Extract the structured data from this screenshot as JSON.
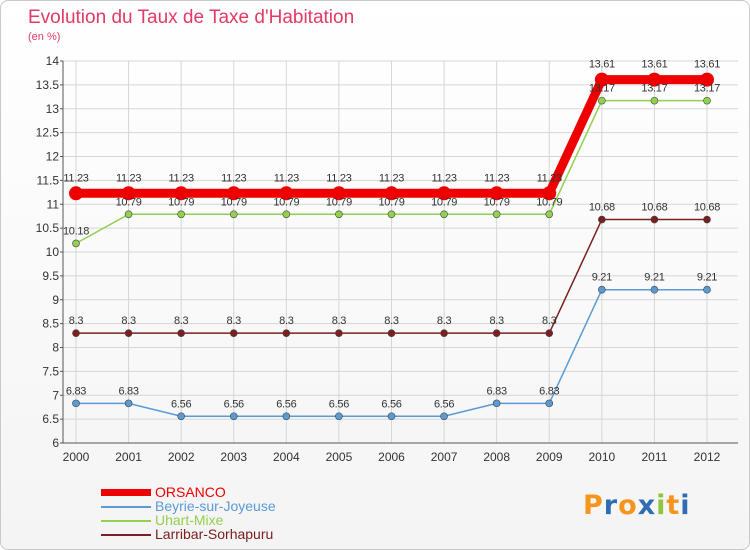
{
  "title": "Evolution du Taux de Taxe d'Habitation",
  "unit": "(en %)",
  "logo": "Proxiti",
  "colors": {
    "title": "#e23a63",
    "grid": "#d6d6d6",
    "axis": "#555555"
  },
  "chart_data": {
    "type": "line",
    "title": "Evolution du Taux de Taxe d'Habitation",
    "ylabel": "(en %)",
    "xlabel": "",
    "ylim": [
      6,
      14
    ],
    "yticks": [
      6,
      6.5,
      7,
      7.5,
      8,
      8.5,
      9,
      9.5,
      10,
      10.5,
      11,
      11.5,
      12,
      12.5,
      13,
      13.5,
      14
    ],
    "grid": true,
    "legend_position": "bottom-left",
    "x": [
      "2000",
      "2001",
      "2002",
      "2003",
      "2004",
      "2005",
      "2006",
      "2007",
      "2008",
      "2009",
      "2010",
      "2011",
      "2012"
    ],
    "series": [
      {
        "name": "ORSANCO",
        "color": "#ee0000",
        "bold": true,
        "values": [
          11.23,
          11.23,
          11.23,
          11.23,
          11.23,
          11.23,
          11.23,
          11.23,
          11.23,
          11.23,
          13.61,
          13.61,
          13.61
        ],
        "labels": [
          "11.23",
          "11.23",
          "11.23",
          "11.23",
          "11.23",
          "11.23",
          "11.23",
          "11.23",
          "11.23",
          "11.23",
          "13.61",
          "13.61",
          "13.61"
        ]
      },
      {
        "name": "Beyrie-sur-Joyeuse",
        "color": "#5b9bd5",
        "bold": false,
        "values": [
          6.83,
          6.83,
          6.56,
          6.56,
          6.56,
          6.56,
          6.56,
          6.56,
          6.83,
          6.83,
          9.21,
          9.21,
          9.21
        ],
        "labels": [
          "6.83",
          "6.83",
          "6.56",
          "6.56",
          "6.56",
          "6.56",
          "6.56",
          "6.56",
          "6.83",
          "6.83",
          "9.21",
          "9.21",
          "9.21"
        ]
      },
      {
        "name": "Uhart-Mixe",
        "color": "#92d050",
        "bold": false,
        "values": [
          10.18,
          10.79,
          10.79,
          10.79,
          10.79,
          10.79,
          10.79,
          10.79,
          10.79,
          10.79,
          13.17,
          13.17,
          13.17
        ],
        "labels": [
          "10.18",
          "10.79",
          "10.79",
          "10.79",
          "10.79",
          "10.79",
          "10.79",
          "10.79",
          "10.79",
          "10.79",
          "13.17",
          "13.17",
          "13.17"
        ]
      },
      {
        "name": "Larribar-Sorhapuru",
        "color": "#7b2020",
        "bold": false,
        "values": [
          8.3,
          8.3,
          8.3,
          8.3,
          8.3,
          8.3,
          8.3,
          8.3,
          8.3,
          8.3,
          10.68,
          10.68,
          10.68
        ],
        "labels": [
          "8.3",
          "8.3",
          "8.3",
          "8.3",
          "8.3",
          "8.3",
          "8.3",
          "8.3",
          "8.3",
          "8.3",
          "10.68",
          "10.68",
          "10.68"
        ]
      }
    ]
  }
}
